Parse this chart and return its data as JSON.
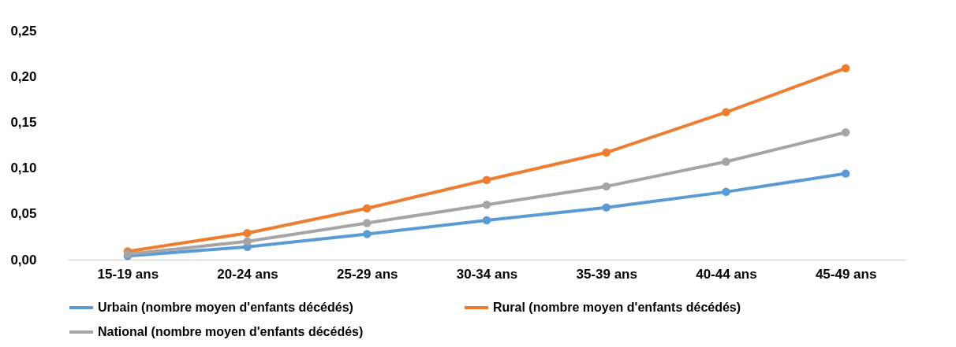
{
  "chart_data": {
    "type": "line",
    "categories": [
      "15-19 ans",
      "20-24 ans",
      "25-29 ans",
      "30-34 ans",
      "35-39 ans",
      "40-44 ans",
      "45-49 ans"
    ],
    "series": [
      {
        "name": "Urbain (nombre moyen d'enfants décédés)",
        "color": "#5b9bd5",
        "values": [
          0.004,
          0.014,
          0.028,
          0.043,
          0.057,
          0.074,
          0.094
        ]
      },
      {
        "name": "Rural (nombre moyen d'enfants décédés)",
        "color": "#ed7d31",
        "values": [
          0.009,
          0.029,
          0.056,
          0.087,
          0.117,
          0.161,
          0.209
        ]
      },
      {
        "name": "National (nombre moyen d'enfants décédés)",
        "color": "#a5a5a5",
        "values": [
          0.006,
          0.02,
          0.04,
          0.06,
          0.08,
          0.107,
          0.139
        ]
      }
    ],
    "ylim": [
      0,
      0.25
    ],
    "yticks": [
      {
        "value": 0,
        "label": "0,00"
      },
      {
        "value": 0.05,
        "label": "0,05"
      },
      {
        "value": 0.1,
        "label": "0,10"
      },
      {
        "value": 0.15,
        "label": "0,15"
      },
      {
        "value": 0.2,
        "label": "0,20"
      },
      {
        "value": 0.25,
        "label": "0,25"
      }
    ],
    "grid": false,
    "legend": "bottom",
    "marker": "circle",
    "line_style": "solid"
  }
}
